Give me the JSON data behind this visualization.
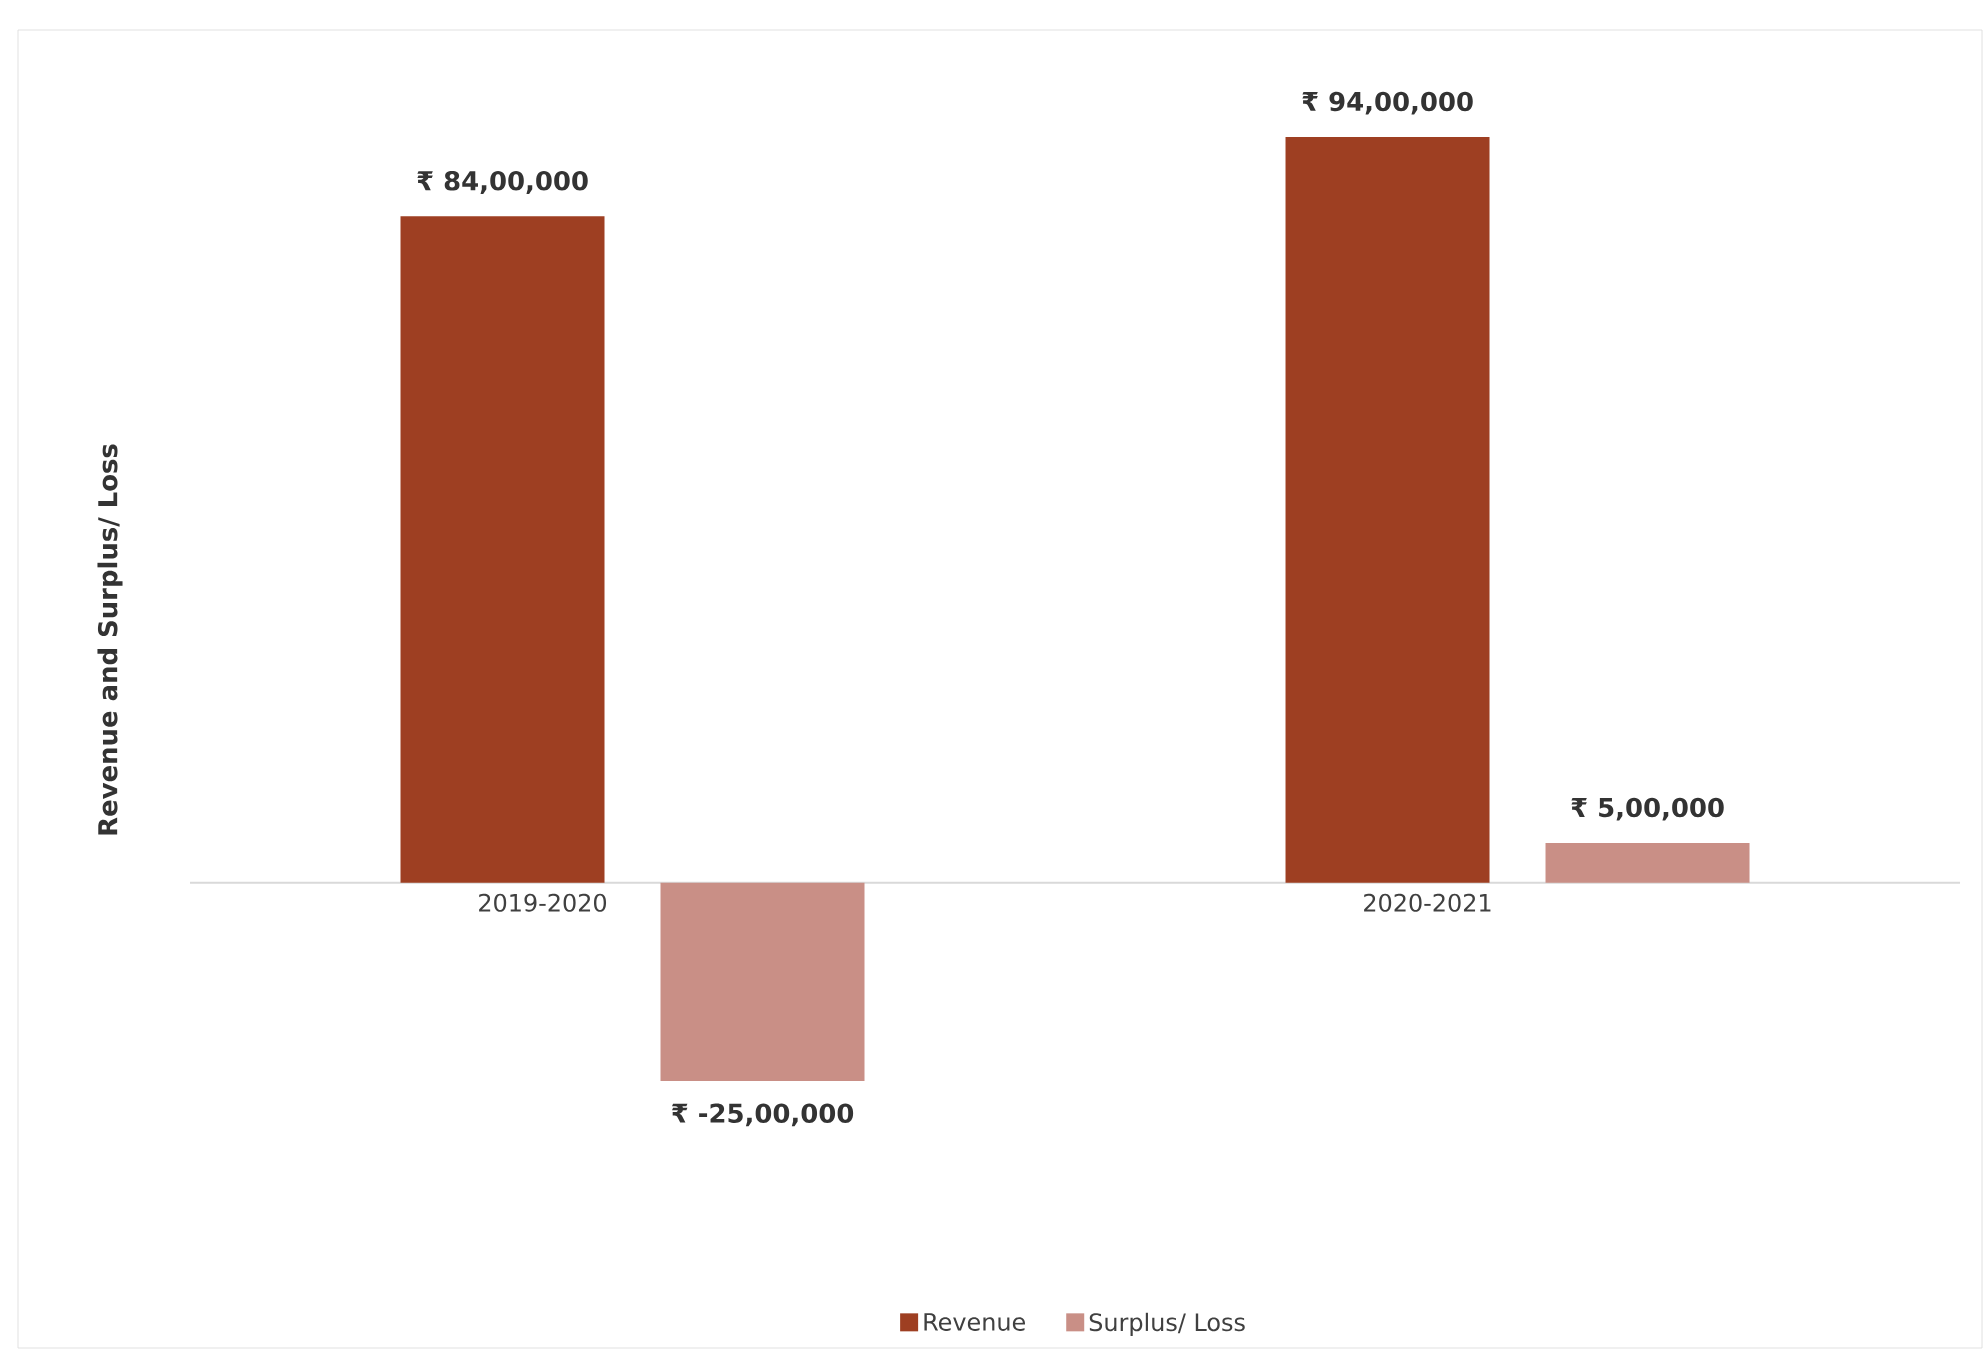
{
  "chart_data": {
    "type": "bar",
    "ylabel": "Revenue and Surplus/ Loss",
    "categories": [
      "2019-2020",
      "2020-2021"
    ],
    "series": [
      {
        "name": "Revenue",
        "color": "#9e3f22",
        "values": [
          8400000,
          9400000
        ],
        "value_labels": [
          "₹ 84,00,000",
          "₹ 94,00,000"
        ]
      },
      {
        "name": "Surplus/ Loss",
        "color": "#c98f86",
        "values": [
          -2500000,
          500000
        ],
        "value_labels": [
          "₹ -25,00,000",
          "₹ 5,00,000"
        ]
      }
    ],
    "legend": "bottom"
  }
}
